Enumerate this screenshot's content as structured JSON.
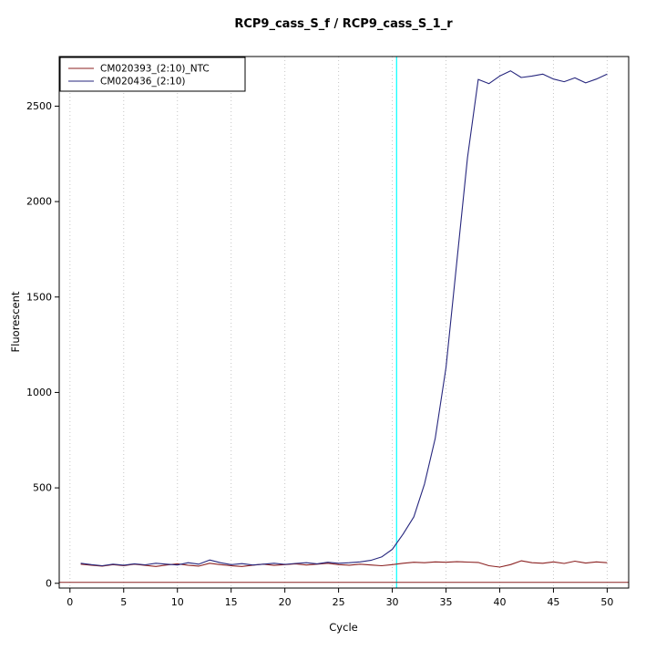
{
  "page": {
    "background": "#ffffff"
  },
  "chart_data": {
    "type": "line",
    "title": "RCP9_cass_S_f / RCP9_cass_S_1_r",
    "xlabel": "Cycle",
    "ylabel": "Fluorescent",
    "xlim": [
      -1,
      52
    ],
    "ylim": [
      -25,
      2760
    ],
    "x_ticks": [
      0,
      5,
      10,
      15,
      20,
      25,
      30,
      35,
      40,
      45,
      50
    ],
    "y_ticks": [
      0,
      500,
      1000,
      1500,
      2000,
      2500
    ],
    "grid": {
      "vertical": true,
      "horizontal": false,
      "color": "#c6c6c6"
    },
    "axis_color": "#000000",
    "threshold_cycle_line": {
      "x": 30.4,
      "color": "#00ffff"
    },
    "baseline_line": {
      "y": 5,
      "color": "#8b2222"
    },
    "legend": {
      "position": "topleft"
    },
    "x": [
      1,
      2,
      3,
      4,
      5,
      6,
      7,
      8,
      9,
      10,
      11,
      12,
      13,
      14,
      15,
      16,
      17,
      18,
      19,
      20,
      21,
      22,
      23,
      24,
      25,
      26,
      27,
      28,
      29,
      30,
      31,
      32,
      33,
      34,
      35,
      36,
      37,
      38,
      39,
      40,
      41,
      42,
      43,
      44,
      45,
      46,
      47,
      48,
      49,
      50
    ],
    "series": [
      {
        "name": "CM020393_(2:10)_NTC",
        "color": "#8b2222",
        "values": [
          100,
          95,
          90,
          98,
          92,
          100,
          94,
          88,
          96,
          102,
          95,
          90,
          105,
          98,
          92,
          88,
          95,
          100,
          94,
          98,
          102,
          96,
          100,
          105,
          98,
          95,
          100,
          96,
          92,
          98,
          105,
          110,
          108,
          112,
          110,
          113,
          111,
          109,
          92,
          85,
          98,
          118,
          108,
          105,
          112,
          104,
          116,
          106,
          112,
          108
        ]
      },
      {
        "name": "CM020436_(2:10)",
        "color": "#27277e",
        "values": [
          105,
          98,
          92,
          100,
          95,
          102,
          97,
          105,
          100,
          96,
          108,
          100,
          122,
          108,
          98,
          103,
          96,
          100,
          105,
          99,
          104,
          108,
          102,
          110,
          105,
          108,
          112,
          120,
          138,
          178,
          258,
          348,
          520,
          760,
          1130,
          1680,
          2230,
          2640,
          2618,
          2658,
          2685,
          2650,
          2658,
          2668,
          2642,
          2628,
          2648,
          2622,
          2642,
          2668
        ]
      }
    ]
  }
}
